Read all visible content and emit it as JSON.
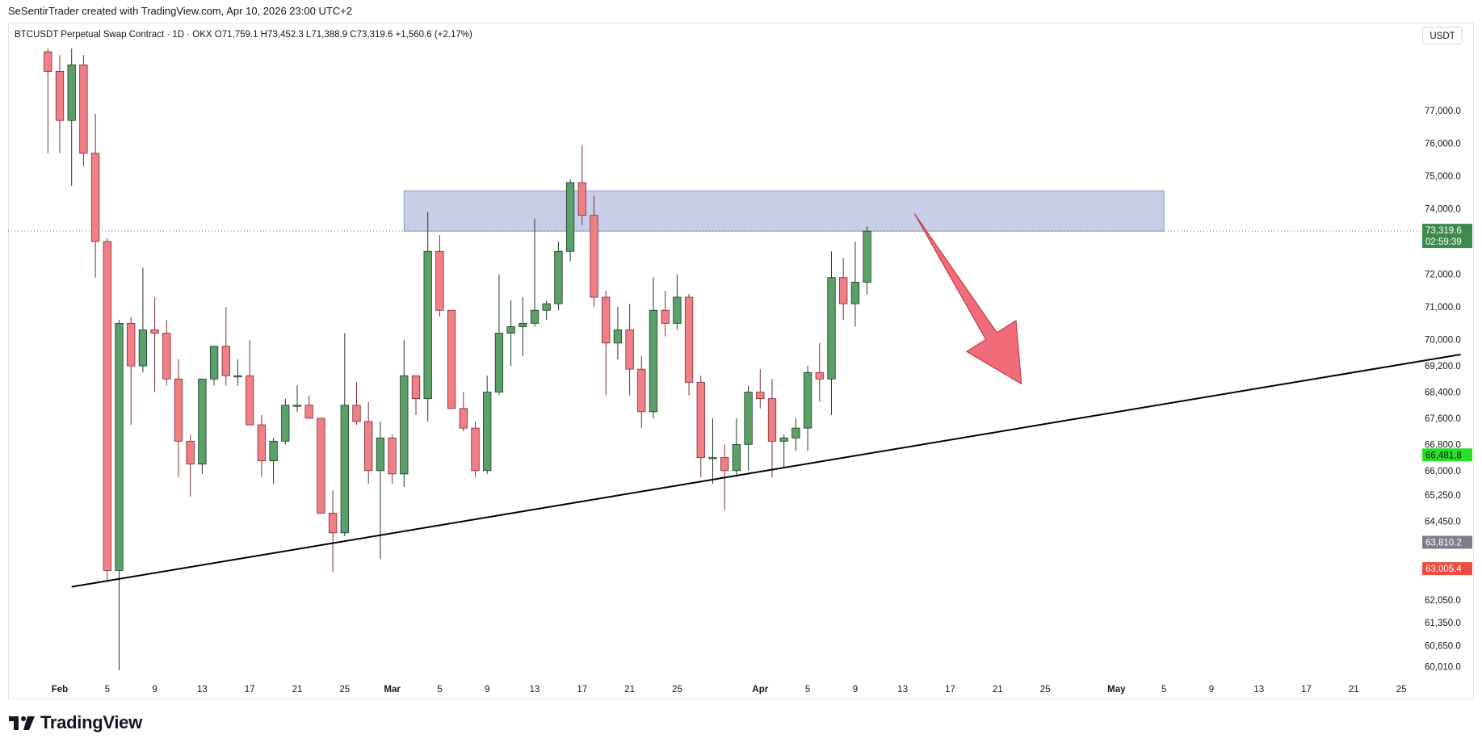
{
  "header": {
    "text": "SeSentirTrader created with TradingView.com, Apr 10, 2026 23:00 UTC+2"
  },
  "symbol_line": "BTCUSDT Perpetual Swap Contract · 1D · OKX  O71,759.1  H73,452.3  L71,388.9  C73,319.6  +1,560.6 (+2.17%)",
  "currency": "USDT",
  "logo": {
    "text": "TradingView"
  },
  "colors": {
    "up": "#5b9f69",
    "up_border": "#1d3b24",
    "down": "#f07f86",
    "down_border": "#7a2d33",
    "zone": "#c5cbe6",
    "zone_border": "#8d99c9",
    "arrow": "#f06070",
    "arrow_border": "#c53b4a",
    "trendline": "#000000"
  },
  "chart_data": {
    "type": "candlestick",
    "price_axis_ticks": [
      "77,000.0",
      "76,000.0",
      "75,000.0",
      "74,000.0",
      "72,000.0",
      "71,000.0",
      "70,000.0",
      "69,200.0",
      "68,400.0",
      "67,600.0",
      "66,800.0",
      "66,000.0",
      "65,250.0",
      "64,450.0",
      "62,050.0",
      "61,350.0",
      "60,650.0",
      "60,010.0"
    ],
    "date_axis_ticks": [
      {
        "label": "Feb",
        "date": "2026-02-01",
        "bold": true
      },
      {
        "label": "5",
        "date": "2026-02-05"
      },
      {
        "label": "9",
        "date": "2026-02-09"
      },
      {
        "label": "13",
        "date": "2026-02-13"
      },
      {
        "label": "17",
        "date": "2026-02-17"
      },
      {
        "label": "21",
        "date": "2026-02-21"
      },
      {
        "label": "25",
        "date": "2026-02-25"
      },
      {
        "label": "Mar",
        "date": "2026-03-01",
        "bold": true
      },
      {
        "label": "5",
        "date": "2026-03-05"
      },
      {
        "label": "9",
        "date": "2026-03-09"
      },
      {
        "label": "13",
        "date": "2026-03-13"
      },
      {
        "label": "17",
        "date": "2026-03-17"
      },
      {
        "label": "21",
        "date": "2026-03-21"
      },
      {
        "label": "25",
        "date": "2026-03-25"
      },
      {
        "label": "Apr",
        "date": "2026-04-01",
        "bold": true
      },
      {
        "label": "5",
        "date": "2026-04-05"
      },
      {
        "label": "9",
        "date": "2026-04-09"
      },
      {
        "label": "13",
        "date": "2026-04-13"
      },
      {
        "label": "17",
        "date": "2026-04-17"
      },
      {
        "label": "21",
        "date": "2026-04-21"
      },
      {
        "label": "25",
        "date": "2026-04-25"
      },
      {
        "label": "May",
        "date": "2026-05-01",
        "bold": true
      },
      {
        "label": "5",
        "date": "2026-05-05"
      },
      {
        "label": "9",
        "date": "2026-05-09"
      },
      {
        "label": "13",
        "date": "2026-05-13"
      },
      {
        "label": "17",
        "date": "2026-05-17"
      },
      {
        "label": "21",
        "date": "2026-05-21"
      },
      {
        "label": "25",
        "date": "2026-05-25"
      }
    ],
    "price_badges": [
      {
        "label": "73,319.6",
        "sub": "02:59:39",
        "value": 73319.6,
        "color": "#3c8a4c"
      },
      {
        "label": "66,481.8",
        "value": 66481.8,
        "color": "#26e026",
        "text_color": "#131722"
      },
      {
        "label": "63,810.2",
        "value": 63810.2,
        "color": "#7b7e86"
      },
      {
        "label": "63,005.4",
        "value": 63005.4,
        "color": "#ef4b3f"
      }
    ],
    "last_price": 73319.6,
    "resistance_zone": {
      "from": "2026-03-02",
      "to": "2026-05-05",
      "low": 73320,
      "high": 74550
    },
    "trendline": {
      "from": {
        "date": "2026-02-02",
        "price": 62450
      },
      "to": {
        "date": "2026-05-30",
        "price": 69550
      }
    },
    "arrow": {
      "from": {
        "date": "2026-04-14",
        "price": 73850
      },
      "to": {
        "date": "2026-04-23",
        "price": 68650
      }
    },
    "candles": [
      {
        "d": "2026-01-31",
        "o": 78800,
        "h": 78900,
        "l": 75700,
        "c": 78200
      },
      {
        "d": "2026-02-01",
        "o": 78200,
        "h": 78700,
        "l": 75700,
        "c": 76700
      },
      {
        "d": "2026-02-02",
        "o": 76700,
        "h": 78900,
        "l": 74700,
        "c": 78400
      },
      {
        "d": "2026-02-03",
        "o": 78400,
        "h": 78700,
        "l": 75300,
        "c": 75700
      },
      {
        "d": "2026-02-04",
        "o": 75700,
        "h": 76900,
        "l": 71900,
        "c": 73000
      },
      {
        "d": "2026-02-05",
        "o": 73000,
        "h": 73100,
        "l": 62600,
        "c": 62950
      },
      {
        "d": "2026-02-06",
        "o": 62950,
        "h": 70600,
        "l": 59900,
        "c": 70500
      },
      {
        "d": "2026-02-07",
        "o": 70500,
        "h": 70700,
        "l": 67400,
        "c": 69200
      },
      {
        "d": "2026-02-08",
        "o": 69200,
        "h": 72200,
        "l": 69000,
        "c": 70300
      },
      {
        "d": "2026-02-09",
        "o": 70300,
        "h": 71300,
        "l": 68400,
        "c": 70200
      },
      {
        "d": "2026-02-10",
        "o": 70200,
        "h": 70600,
        "l": 68600,
        "c": 68800
      },
      {
        "d": "2026-02-11",
        "o": 68800,
        "h": 69400,
        "l": 65800,
        "c": 66900
      },
      {
        "d": "2026-02-12",
        "o": 66900,
        "h": 67100,
        "l": 65200,
        "c": 66200
      },
      {
        "d": "2026-02-13",
        "o": 66200,
        "h": 68800,
        "l": 65900,
        "c": 68800
      },
      {
        "d": "2026-02-14",
        "o": 68800,
        "h": 69800,
        "l": 68600,
        "c": 69800
      },
      {
        "d": "2026-02-15",
        "o": 69800,
        "h": 71000,
        "l": 68600,
        "c": 68900
      },
      {
        "d": "2026-02-16",
        "o": 68900,
        "h": 69400,
        "l": 68600,
        "c": 68900
      },
      {
        "d": "2026-02-17",
        "o": 68900,
        "h": 70000,
        "l": 67400,
        "c": 67400
      },
      {
        "d": "2026-02-18",
        "o": 67400,
        "h": 67700,
        "l": 65800,
        "c": 66300
      },
      {
        "d": "2026-02-19",
        "o": 66300,
        "h": 67000,
        "l": 65600,
        "c": 66900
      },
      {
        "d": "2026-02-20",
        "o": 66900,
        "h": 68200,
        "l": 66800,
        "c": 68000
      },
      {
        "d": "2026-02-21",
        "o": 68000,
        "h": 68600,
        "l": 67800,
        "c": 68000
      },
      {
        "d": "2026-02-22",
        "o": 68000,
        "h": 68300,
        "l": 67600,
        "c": 67600
      },
      {
        "d": "2026-02-23",
        "o": 67600,
        "h": 67600,
        "l": 64700,
        "c": 64700
      },
      {
        "d": "2026-02-24",
        "o": 64700,
        "h": 65400,
        "l": 62900,
        "c": 64100
      },
      {
        "d": "2026-02-25",
        "o": 64100,
        "h": 70200,
        "l": 64000,
        "c": 68000
      },
      {
        "d": "2026-02-26",
        "o": 68000,
        "h": 68700,
        "l": 67400,
        "c": 67500
      },
      {
        "d": "2026-02-27",
        "o": 67500,
        "h": 68100,
        "l": 65600,
        "c": 66000
      },
      {
        "d": "2026-02-28",
        "o": 66000,
        "h": 67500,
        "l": 63300,
        "c": 67000
      },
      {
        "d": "2026-03-01",
        "o": 67000,
        "h": 67100,
        "l": 65600,
        "c": 65900
      },
      {
        "d": "2026-03-02",
        "o": 65900,
        "h": 70000,
        "l": 65500,
        "c": 68900
      },
      {
        "d": "2026-03-03",
        "o": 68900,
        "h": 68900,
        "l": 67700,
        "c": 68200
      },
      {
        "d": "2026-03-04",
        "o": 68200,
        "h": 73900,
        "l": 67500,
        "c": 72700
      },
      {
        "d": "2026-03-05",
        "o": 72700,
        "h": 73200,
        "l": 70700,
        "c": 70900
      },
      {
        "d": "2026-03-06",
        "o": 70900,
        "h": 70900,
        "l": 67900,
        "c": 67900
      },
      {
        "d": "2026-03-07",
        "o": 67900,
        "h": 68400,
        "l": 67200,
        "c": 67300
      },
      {
        "d": "2026-03-08",
        "o": 67300,
        "h": 67500,
        "l": 65800,
        "c": 66000
      },
      {
        "d": "2026-03-09",
        "o": 66000,
        "h": 68900,
        "l": 65900,
        "c": 68400
      },
      {
        "d": "2026-03-10",
        "o": 68400,
        "h": 72000,
        "l": 68300,
        "c": 70200
      },
      {
        "d": "2026-03-11",
        "o": 70200,
        "h": 71200,
        "l": 69200,
        "c": 70400
      },
      {
        "d": "2026-03-12",
        "o": 70400,
        "h": 71300,
        "l": 69500,
        "c": 70500
      },
      {
        "d": "2026-03-13",
        "o": 70500,
        "h": 73700,
        "l": 70400,
        "c": 70900
      },
      {
        "d": "2026-03-14",
        "o": 70900,
        "h": 71200,
        "l": 70600,
        "c": 71100
      },
      {
        "d": "2026-03-15",
        "o": 71100,
        "h": 73000,
        "l": 70900,
        "c": 72700
      },
      {
        "d": "2026-03-16",
        "o": 72700,
        "h": 74900,
        "l": 72400,
        "c": 74800
      },
      {
        "d": "2026-03-17",
        "o": 74800,
        "h": 75950,
        "l": 73500,
        "c": 73800
      },
      {
        "d": "2026-03-18",
        "o": 73800,
        "h": 74400,
        "l": 71000,
        "c": 71300
      },
      {
        "d": "2026-03-19",
        "o": 71300,
        "h": 71500,
        "l": 68300,
        "c": 69900
      },
      {
        "d": "2026-03-20",
        "o": 69900,
        "h": 71000,
        "l": 69400,
        "c": 70300
      },
      {
        "d": "2026-03-21",
        "o": 70300,
        "h": 71100,
        "l": 68300,
        "c": 69100
      },
      {
        "d": "2026-03-22",
        "o": 69100,
        "h": 69500,
        "l": 67300,
        "c": 67800
      },
      {
        "d": "2026-03-23",
        "o": 67800,
        "h": 71900,
        "l": 67600,
        "c": 70900
      },
      {
        "d": "2026-03-24",
        "o": 70900,
        "h": 71500,
        "l": 70100,
        "c": 70500
      },
      {
        "d": "2026-03-25",
        "o": 70500,
        "h": 72000,
        "l": 70300,
        "c": 71300
      },
      {
        "d": "2026-03-26",
        "o": 71300,
        "h": 71400,
        "l": 68300,
        "c": 68700
      },
      {
        "d": "2026-03-27",
        "o": 68700,
        "h": 68900,
        "l": 65800,
        "c": 66400
      },
      {
        "d": "2026-03-28",
        "o": 66400,
        "h": 67600,
        "l": 65600,
        "c": 66400
      },
      {
        "d": "2026-03-29",
        "o": 66400,
        "h": 66800,
        "l": 64800,
        "c": 66000
      },
      {
        "d": "2026-03-30",
        "o": 66000,
        "h": 67600,
        "l": 65800,
        "c": 66800
      },
      {
        "d": "2026-03-31",
        "o": 66800,
        "h": 68600,
        "l": 66000,
        "c": 68400
      },
      {
        "d": "2026-04-01",
        "o": 68400,
        "h": 69100,
        "l": 67900,
        "c": 68200
      },
      {
        "d": "2026-04-02",
        "o": 68200,
        "h": 68800,
        "l": 65800,
        "c": 66900
      },
      {
        "d": "2026-04-03",
        "o": 66900,
        "h": 67100,
        "l": 66100,
        "c": 67000
      },
      {
        "d": "2026-04-04",
        "o": 67000,
        "h": 67600,
        "l": 66600,
        "c": 67300
      },
      {
        "d": "2026-04-05",
        "o": 67300,
        "h": 69200,
        "l": 66600,
        "c": 69000
      },
      {
        "d": "2026-04-06",
        "o": 69000,
        "h": 69900,
        "l": 68100,
        "c": 68800
      },
      {
        "d": "2026-04-07",
        "o": 68800,
        "h": 72700,
        "l": 67700,
        "c": 71900
      },
      {
        "d": "2026-04-08",
        "o": 71900,
        "h": 72500,
        "l": 70600,
        "c": 71100
      },
      {
        "d": "2026-04-09",
        "o": 71100,
        "h": 73000,
        "l": 70400,
        "c": 71759.1
      },
      {
        "d": "2026-04-10",
        "o": 71759.1,
        "h": 73452.3,
        "l": 71388.9,
        "c": 73319.6
      }
    ]
  }
}
